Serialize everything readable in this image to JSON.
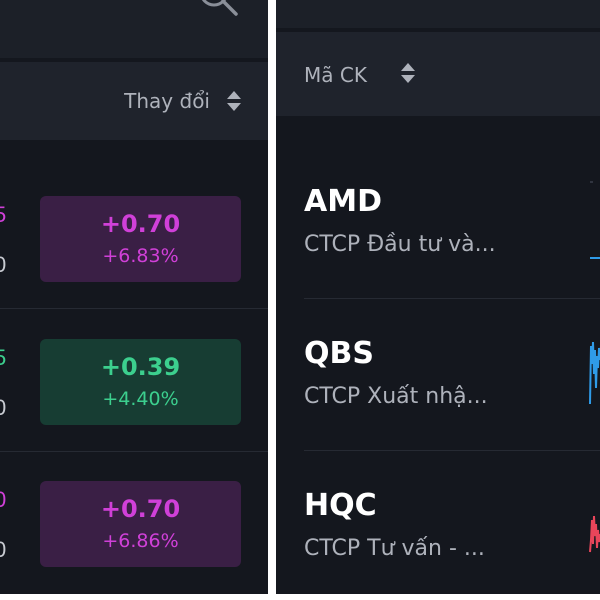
{
  "left_panel": {
    "header": {
      "column_label": "Thay đổi"
    },
    "rows": [
      {
        "price_fragment": "5",
        "volume_fragment": "0",
        "change": "+0.70",
        "change_pct": "+6.83%",
        "status": "ceiling"
      },
      {
        "price_fragment": "5",
        "volume_fragment": "0",
        "change": "+0.39",
        "change_pct": "+4.40%",
        "status": "up"
      },
      {
        "price_fragment": "0",
        "volume_fragment": "0",
        "change": "+0.70",
        "change_pct": "+6.86%",
        "status": "ceiling"
      }
    ]
  },
  "right_panel": {
    "header": {
      "column_label": "Mã CK"
    },
    "rows": [
      {
        "ticker": "AMD",
        "company": "CTCP Đầu tư và...",
        "spark": "blue"
      },
      {
        "ticker": "QBS",
        "company": "CTCP Xuất nhậ...",
        "spark": "blue"
      },
      {
        "ticker": "HQC",
        "company": "CTCP Tư vấn - ...",
        "spark": "red"
      }
    ]
  },
  "colors": {
    "ceiling": "#d040d8",
    "ceiling_bg": "#3a1f45",
    "up": "#3ccf8e",
    "up_bg": "#173d33",
    "spark_blue": "#2f9be8",
    "spark_red": "#e8455a"
  }
}
